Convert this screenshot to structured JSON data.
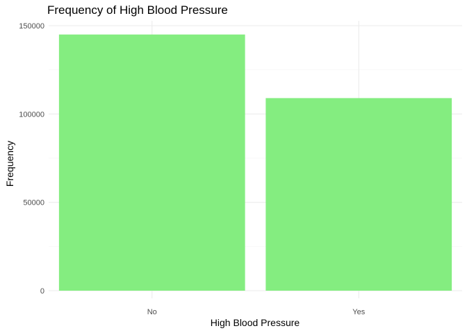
{
  "chart_data": {
    "type": "bar",
    "title": "Frequency of High Blood Pressure",
    "xlabel": "High Blood Pressure",
    "ylabel": "Frequency",
    "categories": [
      "No",
      "Yes"
    ],
    "values": [
      145000,
      109000
    ],
    "ylim": [
      0,
      150000
    ],
    "yticks": [
      0,
      50000,
      100000,
      150000
    ],
    "ytick_labels": [
      "0",
      "50000",
      "100000",
      "150000"
    ],
    "bar_color": "#84ED80",
    "grid": true,
    "legend": "none"
  }
}
